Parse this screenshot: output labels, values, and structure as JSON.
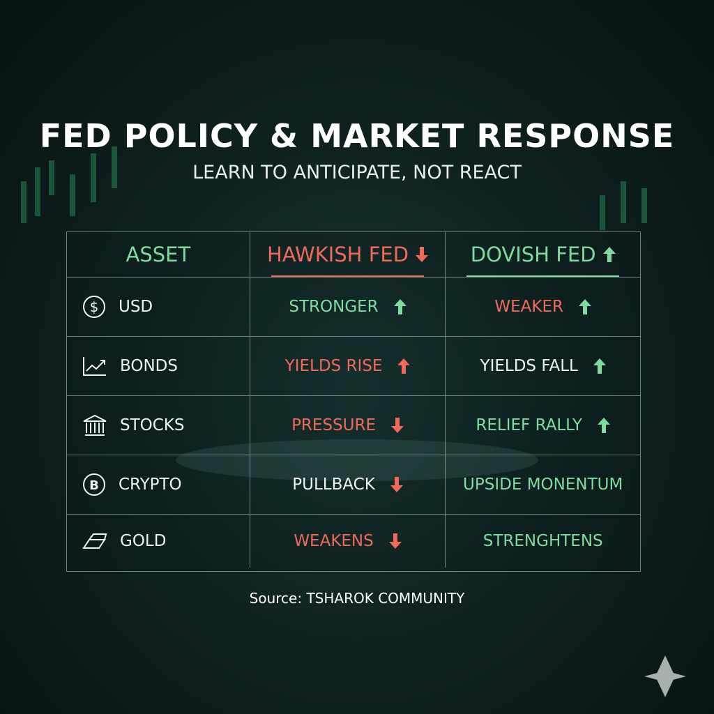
{
  "header": {
    "title": "FED POLICY & MARKET RESPONSE",
    "subtitle": "LEARN TO ANTICIPATE, NOT REACT"
  },
  "table": {
    "columns": [
      "ASSET",
      "HAWKISH FED",
      "DOVISH FED"
    ],
    "rows": [
      [
        "USD",
        "STRONGER",
        "WEAKER"
      ],
      [
        "BONDS",
        "YIELDS RISE",
        "YIELDS FALL"
      ],
      [
        "STOCKS",
        "PRESSURE",
        "RELIEF RALLY"
      ],
      [
        "CRYPTO",
        "PULLBACK",
        "UPSIDE MONENTUM"
      ],
      [
        "GOLD",
        "WEAKENS",
        "STRENGHTENS"
      ]
    ]
  },
  "footer": {
    "source": "Source: TSHAROK COMMUNITY"
  }
}
